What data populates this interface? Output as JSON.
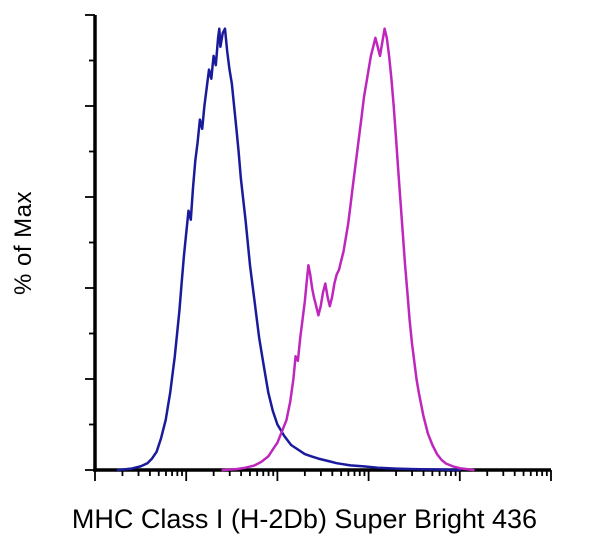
{
  "style": {
    "background": "#FFFFFF",
    "axis_color": "#000000",
    "tick_color": "#000000",
    "axis_width": 3.5,
    "tick_width": 1.8,
    "curve_width": 2.5
  },
  "chart_data": {
    "type": "line",
    "subtype": "flow-cytometry-histogram-overlay",
    "title": "",
    "xlabel": "MHC Class I (H-2Db) Super Bright 436",
    "ylabel": "% of Max",
    "grid": false,
    "legend": "none",
    "x_axis": {
      "scale": "log",
      "decades": 5,
      "tick_labels": []
    },
    "y_axis": {
      "scale": "linear",
      "range": [
        0,
        100
      ],
      "tick_labels": []
    },
    "series": [
      {
        "name": "navy-histogram",
        "color": "#1A1A9C",
        "peak_x_fraction": 0.275,
        "peak_y_percent": 97,
        "points": [
          [
            0.05,
            0
          ],
          [
            0.08,
            0.3
          ],
          [
            0.1,
            0.8
          ],
          [
            0.115,
            1.5
          ],
          [
            0.125,
            2.5
          ],
          [
            0.135,
            4
          ],
          [
            0.145,
            7
          ],
          [
            0.155,
            11
          ],
          [
            0.165,
            17
          ],
          [
            0.175,
            25
          ],
          [
            0.185,
            35
          ],
          [
            0.19,
            41
          ],
          [
            0.195,
            47
          ],
          [
            0.2,
            52
          ],
          [
            0.205,
            57
          ],
          [
            0.21,
            55
          ],
          [
            0.215,
            62
          ],
          [
            0.22,
            68
          ],
          [
            0.225,
            72
          ],
          [
            0.23,
            77
          ],
          [
            0.235,
            75
          ],
          [
            0.24,
            80
          ],
          [
            0.245,
            84
          ],
          [
            0.25,
            88
          ],
          [
            0.255,
            86
          ],
          [
            0.26,
            91
          ],
          [
            0.265,
            89
          ],
          [
            0.27,
            95
          ],
          [
            0.2725,
            97
          ],
          [
            0.275,
            93
          ],
          [
            0.28,
            96
          ],
          [
            0.285,
            97
          ],
          [
            0.29,
            92
          ],
          [
            0.295,
            88
          ],
          [
            0.3,
            85
          ],
          [
            0.305,
            80
          ],
          [
            0.31,
            75
          ],
          [
            0.315,
            70
          ],
          [
            0.32,
            64
          ],
          [
            0.33,
            55
          ],
          [
            0.34,
            45
          ],
          [
            0.35,
            37
          ],
          [
            0.36,
            29
          ],
          [
            0.37,
            23
          ],
          [
            0.38,
            17
          ],
          [
            0.39,
            13
          ],
          [
            0.4,
            10
          ],
          [
            0.415,
            7.5
          ],
          [
            0.43,
            5.5
          ],
          [
            0.445,
            4.5
          ],
          [
            0.46,
            3.5
          ],
          [
            0.475,
            3
          ],
          [
            0.49,
            2.5
          ],
          [
            0.51,
            2
          ],
          [
            0.53,
            1.5
          ],
          [
            0.56,
            1
          ],
          [
            0.59,
            0.8
          ],
          [
            0.62,
            0.5
          ],
          [
            0.66,
            0.3
          ],
          [
            0.7,
            0.2
          ],
          [
            0.75,
            0.1
          ],
          [
            0.8,
            0
          ]
        ]
      },
      {
        "name": "magenta-histogram",
        "color": "#BE26BE",
        "peak_x_fraction": 0.635,
        "peak_y_percent": 97,
        "points": [
          [
            0.28,
            0
          ],
          [
            0.31,
            0.2
          ],
          [
            0.33,
            0.5
          ],
          [
            0.35,
            1
          ],
          [
            0.365,
            1.8
          ],
          [
            0.38,
            3
          ],
          [
            0.39,
            4.5
          ],
          [
            0.4,
            6
          ],
          [
            0.41,
            8.5
          ],
          [
            0.42,
            11
          ],
          [
            0.428,
            15
          ],
          [
            0.435,
            20
          ],
          [
            0.44,
            25
          ],
          [
            0.445,
            24
          ],
          [
            0.45,
            29
          ],
          [
            0.455,
            33
          ],
          [
            0.46,
            37
          ],
          [
            0.465,
            42
          ],
          [
            0.468,
            45
          ],
          [
            0.472,
            43
          ],
          [
            0.476,
            40
          ],
          [
            0.48,
            38
          ],
          [
            0.485,
            36
          ],
          [
            0.49,
            34
          ],
          [
            0.495,
            36
          ],
          [
            0.5,
            39
          ],
          [
            0.505,
            41
          ],
          [
            0.51,
            38
          ],
          [
            0.515,
            36
          ],
          [
            0.52,
            38
          ],
          [
            0.525,
            41
          ],
          [
            0.53,
            43
          ],
          [
            0.535,
            44
          ],
          [
            0.54,
            46
          ],
          [
            0.545,
            48
          ],
          [
            0.55,
            51
          ],
          [
            0.555,
            54
          ],
          [
            0.56,
            58
          ],
          [
            0.565,
            62
          ],
          [
            0.57,
            66
          ],
          [
            0.575,
            70
          ],
          [
            0.58,
            74
          ],
          [
            0.585,
            78
          ],
          [
            0.59,
            82
          ],
          [
            0.595,
            85
          ],
          [
            0.6,
            88
          ],
          [
            0.605,
            91
          ],
          [
            0.61,
            93
          ],
          [
            0.615,
            95
          ],
          [
            0.62,
            93
          ],
          [
            0.625,
            91
          ],
          [
            0.63,
            94
          ],
          [
            0.635,
            97
          ],
          [
            0.64,
            95
          ],
          [
            0.645,
            91
          ],
          [
            0.65,
            86
          ],
          [
            0.655,
            80
          ],
          [
            0.66,
            73
          ],
          [
            0.665,
            66
          ],
          [
            0.67,
            59
          ],
          [
            0.675,
            52
          ],
          [
            0.68,
            45
          ],
          [
            0.685,
            39
          ],
          [
            0.69,
            33
          ],
          [
            0.695,
            28
          ],
          [
            0.7,
            24
          ],
          [
            0.705,
            20
          ],
          [
            0.71,
            17
          ],
          [
            0.72,
            12
          ],
          [
            0.73,
            8
          ],
          [
            0.74,
            5.5
          ],
          [
            0.75,
            3.5
          ],
          [
            0.76,
            2.2
          ],
          [
            0.77,
            1.4
          ],
          [
            0.785,
            0.8
          ],
          [
            0.8,
            0.4
          ],
          [
            0.83,
            0
          ]
        ]
      }
    ]
  }
}
